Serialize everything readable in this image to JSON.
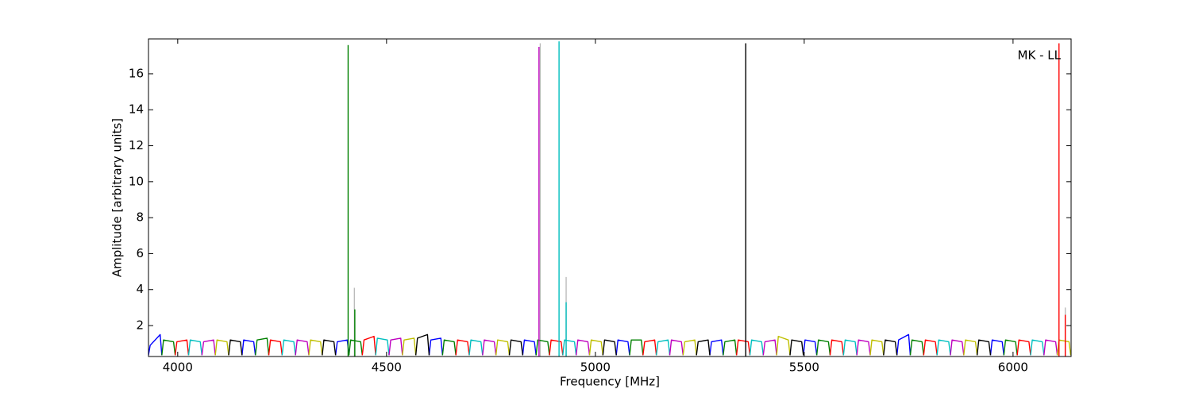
{
  "chart_data": {
    "type": "line",
    "xlabel": "Frequency [MHz]",
    "ylabel": "Amplitude [arbitrary units]",
    "annotation": "MK - LL",
    "xlim": [
      3930,
      6139
    ],
    "xticks": [
      4000,
      4500,
      5000,
      5500,
      6000
    ],
    "ylim": [
      0.28,
      17.94
    ],
    "yticks": [
      2,
      4,
      6,
      8,
      10,
      12,
      14,
      16
    ],
    "grid": false,
    "series": [
      {
        "color": "#bbbbbb",
        "x": [
          4423,
          4423,
          null,
          4868,
          4868,
          null,
          4930,
          4930,
          null,
          6125,
          6125
        ],
        "values": [
          0.3,
          4.1,
          null,
          0.3,
          17.7,
          null,
          0.3,
          4.7,
          null,
          0.3,
          3.0
        ]
      },
      {
        "color": "#0000ff",
        "x": [
          3930,
          3934,
          3958,
          3962,
          null,
          4154,
          4158,
          4182,
          4186,
          null,
          4378,
          4382,
          4406,
          4410,
          null,
          4602,
          4606,
          4630,
          4634,
          null,
          4826,
          4830,
          4854,
          4858,
          null,
          5050,
          5054,
          5078,
          5082,
          null,
          5274,
          5278,
          5302,
          5306,
          null,
          5498,
          5502,
          5526,
          5530,
          null,
          5722,
          5726,
          5750,
          5754,
          null,
          5946,
          5950,
          5974,
          5978
        ],
        "values": [
          0.35,
          0.9,
          1.5,
          0.35,
          null,
          0.35,
          1.2,
          1.1,
          0.35,
          null,
          0.35,
          1.1,
          1.2,
          0.35,
          null,
          0.35,
          1.2,
          1.3,
          0.35,
          null,
          0.35,
          1.2,
          1.1,
          0.35,
          null,
          0.35,
          1.2,
          1.1,
          0.35,
          null,
          0.35,
          1.1,
          1.2,
          0.35,
          null,
          0.35,
          1.2,
          1.1,
          0.35,
          null,
          0.35,
          1.2,
          1.5,
          0.35,
          null,
          0.35,
          1.2,
          1.1,
          0.35
        ]
      },
      {
        "color": "#008000",
        "x": [
          3962,
          3966,
          3990,
          3994,
          null,
          4186,
          4190,
          4214,
          4218,
          null,
          4410,
          4414,
          4438,
          4442,
          null,
          4634,
          4638,
          4662,
          4666,
          null,
          4858,
          4862,
          4886,
          4890,
          null,
          5082,
          5086,
          5110,
          5114,
          null,
          5306,
          5310,
          5334,
          5338,
          null,
          5530,
          5534,
          5558,
          5562,
          null,
          5754,
          5758,
          5782,
          5786,
          null,
          5978,
          5982,
          6006,
          6010
        ],
        "values": [
          0.35,
          1.2,
          1.1,
          0.35,
          null,
          0.35,
          1.2,
          1.3,
          0.35,
          null,
          0.35,
          1.2,
          1.1,
          0.35,
          null,
          0.35,
          1.2,
          1.1,
          0.35,
          null,
          0.35,
          1.2,
          1.1,
          0.35,
          null,
          0.35,
          1.2,
          1.2,
          0.35,
          null,
          0.35,
          1.1,
          1.2,
          0.35,
          null,
          0.35,
          1.2,
          1.1,
          0.35,
          null,
          0.35,
          1.2,
          1.1,
          0.35,
          null,
          0.35,
          1.2,
          1.1,
          0.35
        ]
      },
      {
        "color": "#ff0000",
        "x": [
          3994,
          3998,
          4022,
          4026,
          null,
          4218,
          4222,
          4246,
          4250,
          null,
          4442,
          4446,
          4470,
          4474,
          null,
          4666,
          4670,
          4694,
          4698,
          null,
          4890,
          4894,
          4918,
          4922,
          null,
          5114,
          5118,
          5142,
          5146,
          null,
          5338,
          5342,
          5366,
          5370,
          null,
          5562,
          5566,
          5590,
          5594,
          null,
          5786,
          5790,
          5814,
          5818,
          null,
          6010,
          6014,
          6038,
          6042
        ],
        "values": [
          0.35,
          1.1,
          1.2,
          0.35,
          null,
          0.35,
          1.2,
          1.1,
          0.35,
          null,
          0.35,
          1.2,
          1.4,
          0.35,
          null,
          0.35,
          1.2,
          1.1,
          0.35,
          null,
          0.35,
          1.2,
          1.1,
          0.35,
          null,
          0.35,
          1.1,
          1.2,
          0.35,
          null,
          0.35,
          1.2,
          1.1,
          0.35,
          null,
          0.35,
          1.2,
          1.1,
          0.35,
          null,
          0.35,
          1.2,
          1.1,
          0.35,
          null,
          0.35,
          1.2,
          1.1,
          0.35
        ]
      },
      {
        "color": "#00bfbf",
        "x": [
          4026,
          4030,
          4054,
          4058,
          null,
          4250,
          4254,
          4278,
          4282,
          null,
          4474,
          4478,
          4502,
          4506,
          null,
          4698,
          4702,
          4726,
          4730,
          null,
          4922,
          4926,
          4950,
          4954,
          null,
          5146,
          5150,
          5174,
          5178,
          null,
          5370,
          5374,
          5398,
          5402,
          null,
          5594,
          5598,
          5622,
          5626,
          null,
          5818,
          5822,
          5846,
          5850,
          null,
          6042,
          6046,
          6070,
          6074
        ],
        "values": [
          0.35,
          1.2,
          1.1,
          0.35,
          null,
          0.35,
          1.2,
          1.1,
          0.35,
          null,
          0.35,
          1.3,
          1.2,
          0.35,
          null,
          0.35,
          1.2,
          1.1,
          0.35,
          null,
          0.35,
          1.2,
          1.1,
          0.35,
          null,
          0.35,
          1.1,
          1.2,
          0.35,
          null,
          0.35,
          1.2,
          1.1,
          0.35,
          null,
          0.35,
          1.2,
          1.1,
          0.35,
          null,
          0.35,
          1.2,
          1.1,
          0.35,
          null,
          0.35,
          1.2,
          1.1,
          0.35
        ]
      },
      {
        "color": "#bf00bf",
        "x": [
          4058,
          4062,
          4086,
          4090,
          null,
          4282,
          4286,
          4310,
          4314,
          null,
          4506,
          4510,
          4534,
          4538,
          null,
          4730,
          4734,
          4758,
          4762,
          null,
          4954,
          4958,
          4982,
          4986,
          null,
          5178,
          5182,
          5206,
          5210,
          null,
          5402,
          5406,
          5430,
          5434,
          null,
          5626,
          5630,
          5654,
          5658,
          null,
          5850,
          5854,
          5878,
          5882,
          null,
          6074,
          6078,
          6102,
          6106
        ],
        "values": [
          0.35,
          1.1,
          1.2,
          0.35,
          null,
          0.35,
          1.2,
          1.1,
          0.35,
          null,
          0.35,
          1.2,
          1.3,
          0.35,
          null,
          0.35,
          1.2,
          1.1,
          0.35,
          null,
          0.35,
          1.2,
          1.1,
          0.35,
          null,
          0.35,
          1.2,
          1.1,
          0.35,
          null,
          0.35,
          1.1,
          1.2,
          0.35,
          null,
          0.35,
          1.2,
          1.1,
          0.35,
          null,
          0.35,
          1.2,
          1.1,
          0.35,
          null,
          0.35,
          1.2,
          1.1,
          0.35
        ]
      },
      {
        "color": "#bfbf00",
        "x": [
          4090,
          4094,
          4118,
          4122,
          null,
          4314,
          4318,
          4342,
          4346,
          null,
          4538,
          4542,
          4566,
          4570,
          null,
          4762,
          4766,
          4790,
          4794,
          null,
          4986,
          4990,
          5014,
          5018,
          null,
          5210,
          5214,
          5238,
          5242,
          null,
          5434,
          5438,
          5462,
          5466,
          null,
          5658,
          5662,
          5686,
          5690,
          null,
          5882,
          5886,
          5910,
          5914,
          null,
          6106,
          6110,
          6134,
          6138
        ],
        "values": [
          0.35,
          1.2,
          1.1,
          0.35,
          null,
          0.35,
          1.2,
          1.1,
          0.35,
          null,
          0.35,
          1.2,
          1.3,
          0.35,
          null,
          0.35,
          1.2,
          1.1,
          0.35,
          null,
          0.35,
          1.2,
          1.1,
          0.35,
          null,
          0.35,
          1.1,
          1.2,
          0.35,
          null,
          0.35,
          1.4,
          1.2,
          0.35,
          null,
          0.35,
          1.2,
          1.1,
          0.35,
          null,
          0.35,
          1.2,
          1.1,
          0.35,
          null,
          0.35,
          1.2,
          1.1,
          0.35
        ]
      },
      {
        "color": "#000000",
        "x": [
          4122,
          4126,
          4150,
          4154,
          null,
          4346,
          4350,
          4374,
          4378,
          null,
          4570,
          4574,
          4598,
          4602,
          null,
          4794,
          4798,
          4822,
          4826,
          null,
          5018,
          5022,
          5046,
          5050,
          null,
          5242,
          5246,
          5270,
          5274,
          null,
          5466,
          5470,
          5494,
          5498,
          null,
          5690,
          5694,
          5718,
          5722,
          null,
          5914,
          5918,
          5942,
          5946
        ],
        "values": [
          0.35,
          1.2,
          1.1,
          0.35,
          null,
          0.35,
          1.2,
          1.1,
          0.35,
          null,
          0.35,
          1.3,
          1.5,
          0.35,
          null,
          0.35,
          1.2,
          1.1,
          0.35,
          null,
          0.35,
          1.2,
          1.1,
          0.35,
          null,
          0.35,
          1.1,
          1.2,
          0.35,
          null,
          0.35,
          1.2,
          1.1,
          0.35,
          null,
          0.35,
          1.2,
          1.1,
          0.35,
          null,
          0.35,
          1.2,
          1.1,
          0.35
        ]
      },
      {
        "color": "#008000",
        "x": [
          4408,
          4408,
          null,
          4424,
          4424
        ],
        "values": [
          0.3,
          17.6,
          null,
          0.3,
          2.9
        ]
      },
      {
        "color": "#bf00bf",
        "x": [
          4865,
          4865
        ],
        "values": [
          0.3,
          17.5
        ]
      },
      {
        "color": "#00bfbf",
        "x": [
          4913,
          4913,
          null,
          4930,
          4930
        ],
        "values": [
          0.3,
          17.8,
          null,
          0.3,
          3.3
        ]
      },
      {
        "color": "#000000",
        "x": [
          5360,
          5360
        ],
        "values": [
          0.3,
          17.7
        ]
      },
      {
        "color": "#ff0000",
        "x": [
          6110,
          6110,
          null,
          6125,
          6125
        ],
        "values": [
          0.3,
          17.7,
          null,
          0.3,
          2.6
        ]
      }
    ]
  }
}
